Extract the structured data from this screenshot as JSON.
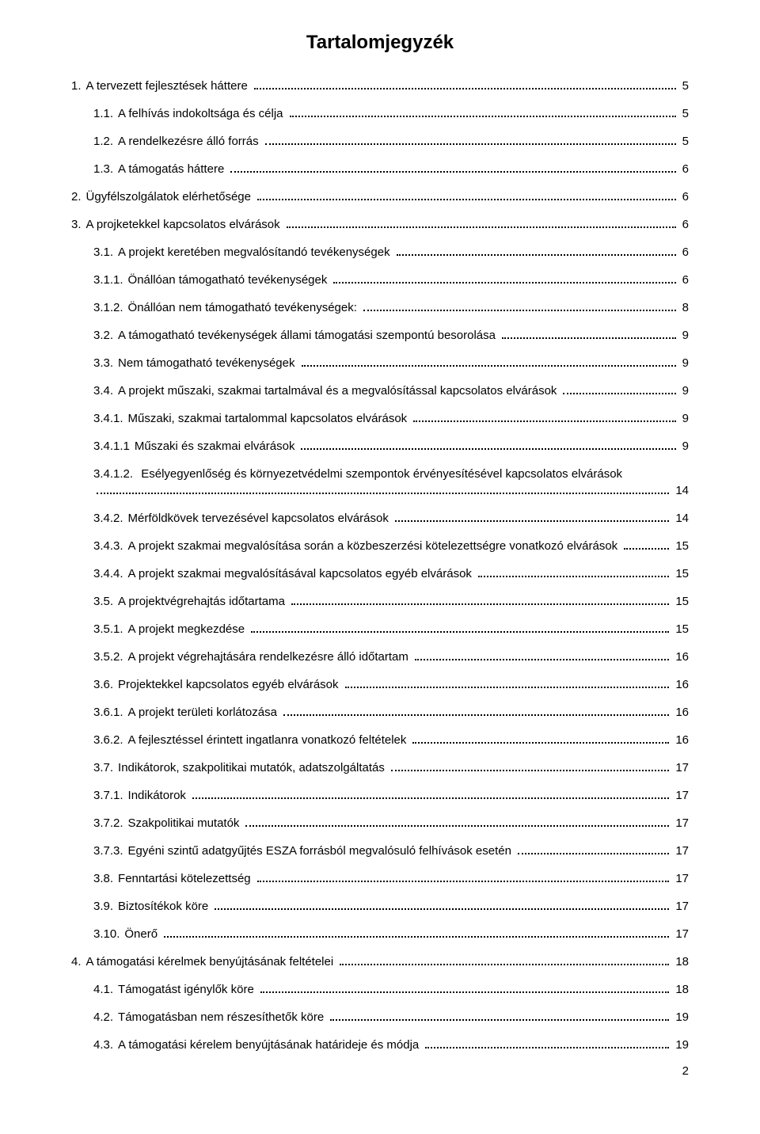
{
  "document": {
    "title": "Tartalomjegyzék",
    "footer_page": "2",
    "typography": {
      "title_fontsize_pt": 18,
      "body_fontsize_pt": 11,
      "font_family": "Arial"
    },
    "colors": {
      "background": "#ffffff",
      "text": "#000000",
      "dots": "#000000"
    },
    "entries": [
      {
        "num": "1.",
        "text": "A tervezett fejlesztések háttere",
        "page": "5",
        "indent": 0
      },
      {
        "num": "1.1.",
        "text": "A felhívás indokoltsága és célja",
        "page": "5",
        "indent": 1
      },
      {
        "num": "1.2.",
        "text": "A rendelkezésre álló forrás",
        "page": "5",
        "indent": 1
      },
      {
        "num": "1.3.",
        "text": "A támogatás háttere",
        "page": "6",
        "indent": 1
      },
      {
        "num": "2.",
        "text": "Ügyfélszolgálatok elérhetősége",
        "page": "6",
        "indent": 0
      },
      {
        "num": "3.",
        "text": "A projketekkel kapcsolatos elvárások",
        "page": "6",
        "indent": 0
      },
      {
        "num": "3.1.",
        "text": "A projekt keretében megvalósítandó tevékenységek",
        "page": "6",
        "indent": 1
      },
      {
        "num": "3.1.1.",
        "text": "Önállóan támogatható tevékenységek",
        "page": "6",
        "indent": 1
      },
      {
        "num": "3.1.2.",
        "text": "Önállóan nem támogatható tevékenységek:",
        "page": "8",
        "indent": 1
      },
      {
        "num": "3.2.",
        "text": "A támogatható tevékenységek állami támogatási szempontú besorolása",
        "page": "9",
        "indent": 1
      },
      {
        "num": "3.3.",
        "text": "Nem támogatható tevékenységek",
        "page": "9",
        "indent": 1
      },
      {
        "num": "3.4.",
        "text": "A projekt műszaki, szakmai tartalmával és a megvalósítással kapcsolatos elvárások",
        "page": "9",
        "indent": 1
      },
      {
        "num": "3.4.1.",
        "text": "Műszaki, szakmai tartalommal kapcsolatos elvárások",
        "page": "9",
        "indent": 1
      },
      {
        "num": "3.4.1.1",
        "text": "Műszaki és szakmai elvárások",
        "page": "9",
        "indent": 1,
        "no_dot_after_num": true
      },
      {
        "num": "3.4.1.2.",
        "text": "Esélyegyenlőség és környezetvédelmi szempontok érvényesítésével kapcsolatos elvárások",
        "page": "14",
        "indent": 1,
        "wrap": true
      },
      {
        "num": "3.4.2.",
        "text": "Mérföldkövek tervezésével kapcsolatos elvárások",
        "page": "14",
        "indent": 1
      },
      {
        "num": "3.4.3.",
        "text": "A projekt szakmai megvalósítása során a közbeszerzési kötelezettségre vonatkozó elvárások",
        "page": "15",
        "indent": 1,
        "tight": true
      },
      {
        "num": "3.4.4.",
        "text": "A projekt szakmai megvalósításával kapcsolatos egyéb elvárások",
        "page": "15",
        "indent": 1
      },
      {
        "num": "3.5.",
        "text": "A projektvégrehajtás időtartama",
        "page": "15",
        "indent": 1
      },
      {
        "num": "3.5.1.",
        "text": "A projekt megkezdése",
        "page": "15",
        "indent": 1
      },
      {
        "num": "3.5.2.",
        "text": "A projekt végrehajtására rendelkezésre álló időtartam",
        "page": "16",
        "indent": 1
      },
      {
        "num": "3.6.",
        "text": "Projektekkel kapcsolatos egyéb elvárások",
        "page": "16",
        "indent": 1
      },
      {
        "num": "3.6.1.",
        "text": "A projekt területi korlátozása",
        "page": "16",
        "indent": 1
      },
      {
        "num": "3.6.2.",
        "text": "A fejlesztéssel érintett ingatlanra vonatkozó feltételek",
        "page": "16",
        "indent": 1
      },
      {
        "num": "3.7.",
        "text": "Indikátorok, szakpolitikai mutatók, adatszolgáltatás",
        "page": "17",
        "indent": 1
      },
      {
        "num": "3.7.1.",
        "text": "Indikátorok",
        "page": "17",
        "indent": 1
      },
      {
        "num": "3.7.2.",
        "text": "Szakpolitikai mutatók",
        "page": "17",
        "indent": 1
      },
      {
        "num": "3.7.3.",
        "text": "Egyéni szintű adatgyűjtés ESZA forrásból megvalósuló felhívások esetén",
        "page": "17",
        "indent": 1
      },
      {
        "num": "3.8.",
        "text": "Fenntartási kötelezettség",
        "page": "17",
        "indent": 1
      },
      {
        "num": "3.9.",
        "text": "Biztosítékok köre",
        "page": "17",
        "indent": 1
      },
      {
        "num": "3.10.",
        "text": "Önerő",
        "page": "17",
        "indent": 1
      },
      {
        "num": "4.",
        "text": "A támogatási kérelmek benyújtásának feltételei",
        "page": "18",
        "indent": 0
      },
      {
        "num": "4.1.",
        "text": "Támogatást igénylők köre",
        "page": "18",
        "indent": 1
      },
      {
        "num": "4.2.",
        "text": "Támogatásban nem részesíthetők köre",
        "page": "19",
        "indent": 1
      },
      {
        "num": "4.3.",
        "text": "A támogatási kérelem benyújtásának határideje és módja",
        "page": "19",
        "indent": 1
      }
    ]
  }
}
